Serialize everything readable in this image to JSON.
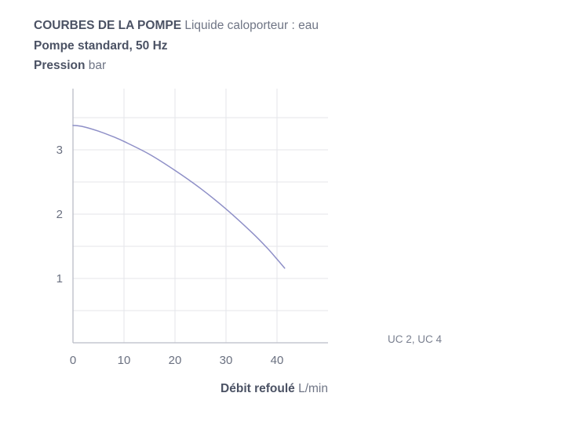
{
  "header": {
    "title_bold": "COURBES DE LA POMPE",
    "title_light": "Liquide caloporteur : eau",
    "subtitle_bold": "Pompe standard, 50 Hz",
    "ylabel_bold": "Pression",
    "ylabel_unit": "bar"
  },
  "xaxis": {
    "label_bold": "Débit refoulé",
    "label_unit": "L/min"
  },
  "colors": {
    "curve": "#8e8fc7",
    "grid": "#e4e5ea",
    "axis": "#b9bcc6"
  },
  "chart_data": {
    "type": "line",
    "title": "COURBES DE LA POMPE",
    "subtitle": "Pompe standard, 50 Hz",
    "xlabel": "Débit refoulé L/min",
    "ylabel": "Pression bar",
    "xlim": [
      0,
      50
    ],
    "ylim": [
      0,
      4
    ],
    "xticks": [
      0,
      10,
      20,
      30,
      40
    ],
    "yticks": [
      1,
      2,
      3
    ],
    "grid": true,
    "legend_position": "right",
    "series": [
      {
        "name": "UC 2, UC 4",
        "x": [
          0,
          2,
          5,
          8,
          10,
          15,
          20,
          25,
          30,
          35,
          38,
          40,
          41.5
        ],
        "y": [
          3.38,
          3.36,
          3.29,
          3.2,
          3.13,
          2.93,
          2.68,
          2.4,
          2.08,
          1.72,
          1.48,
          1.3,
          1.16
        ]
      }
    ]
  }
}
